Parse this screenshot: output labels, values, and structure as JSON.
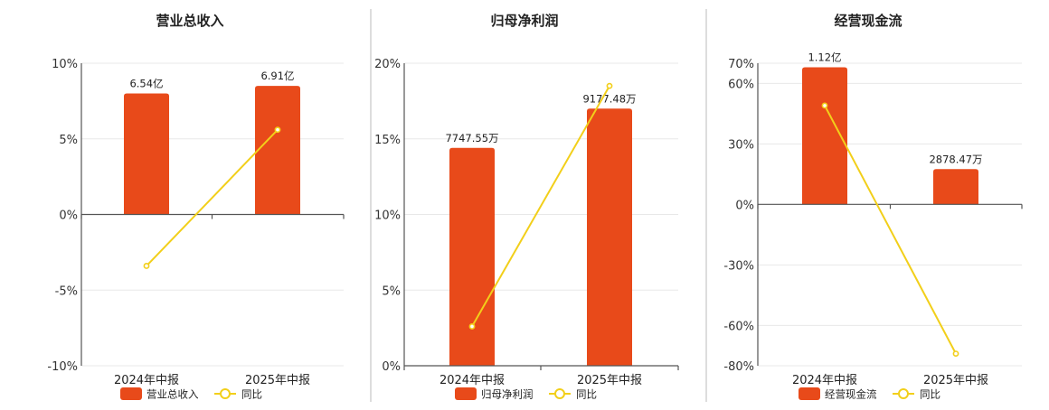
{
  "colors": {
    "bar": "#E84A1A",
    "line": "#F2CF1A"
  },
  "chart_data": [
    {
      "type": "bar",
      "title": "营业总收入",
      "categories": [
        "2024年中报",
        "2025年中报"
      ],
      "series": [
        {
          "name": "营业总收入",
          "type": "bar",
          "values": [
            8.0,
            8.5
          ],
          "labels": [
            "6.54亿",
            "6.91亿"
          ]
        },
        {
          "name": "同比",
          "type": "line",
          "values": [
            -3.4,
            5.6
          ]
        }
      ],
      "ylim": [
        -10,
        10
      ],
      "yticks": [
        -10,
        -5,
        0,
        5,
        10
      ],
      "ytick_labels": [
        "-10%",
        "-5%",
        "0%",
        "5%",
        "10%"
      ],
      "grid": true,
      "legend": "bottom"
    },
    {
      "type": "bar",
      "title": "归母净利润",
      "categories": [
        "2024年中报",
        "2025年中报"
      ],
      "series": [
        {
          "name": "归母净利润",
          "type": "bar",
          "values": [
            14.4,
            17.0
          ],
          "labels": [
            "7747.55万",
            "9177.48万"
          ]
        },
        {
          "name": "同比",
          "type": "line",
          "values": [
            2.6,
            18.5
          ]
        }
      ],
      "ylim": [
        0,
        20
      ],
      "yticks": [
        0,
        5,
        10,
        15,
        20
      ],
      "ytick_labels": [
        "0%",
        "5%",
        "10%",
        "15%",
        "20%"
      ],
      "grid": true,
      "legend": "bottom"
    },
    {
      "type": "bar",
      "title": "经营现金流",
      "categories": [
        "2024年中报",
        "2025年中报"
      ],
      "series": [
        {
          "name": "经营现金流",
          "type": "bar",
          "values": [
            68,
            17.5
          ],
          "labels": [
            "1.12亿",
            "2878.47万"
          ]
        },
        {
          "name": "同比",
          "type": "line",
          "values": [
            49,
            -74
          ]
        }
      ],
      "ylim": [
        -80,
        70
      ],
      "yticks": [
        -80,
        -60,
        -30,
        0,
        30,
        60,
        70
      ],
      "ytick_labels": [
        "-80%",
        "-60%",
        "-30%",
        "0%",
        "30%",
        "60%",
        "70%"
      ],
      "grid": true,
      "legend": "bottom"
    }
  ]
}
